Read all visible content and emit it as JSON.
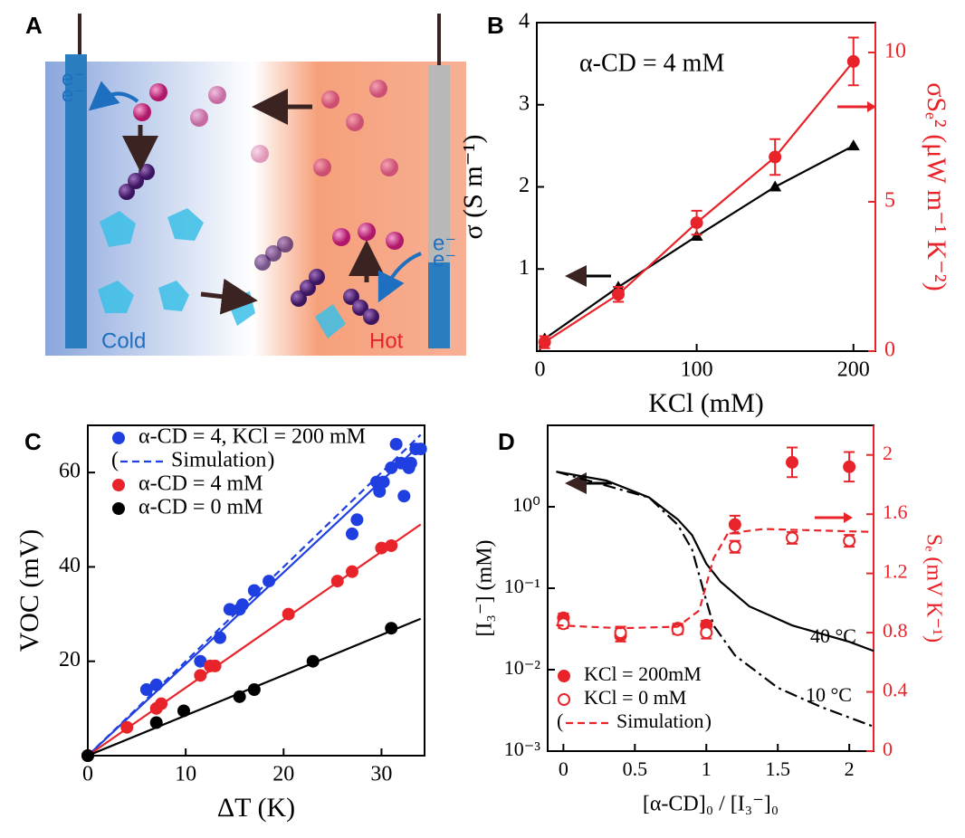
{
  "panel_a": {
    "label": "A",
    "cold": "Cold",
    "hot": "Hot",
    "electron_labels": [
      "e⁻",
      "e⁻",
      "e⁻",
      "e⁻"
    ]
  },
  "chart_data": [
    {
      "type": "line",
      "panel": "B",
      "xlabel": "KCl (mM)",
      "ylabel": "σ (S m⁻¹)",
      "y2label": "σSₑ² (μW m⁻¹ K⁻²)",
      "annotations": [
        "α-CD = 4 mM"
      ],
      "xlim": [
        -2,
        214
      ],
      "xticks": [
        0,
        100,
        200
      ],
      "ylim": [
        0,
        4
      ],
      "yticks": [
        1,
        2,
        3,
        4
      ],
      "y2lim": [
        0,
        11
      ],
      "y2ticks": [
        0,
        5,
        10
      ],
      "series": [
        {
          "color": "#000000",
          "marker": "triangle",
          "line_style": "solid",
          "x": [
            3,
            50,
            100,
            150,
            200
          ],
          "values": [
            0.15,
            0.78,
            1.4,
            2.0,
            2.5
          ]
        },
        {
          "color": "#e8242a",
          "marker": "circle",
          "line_style": "solid",
          "axis": "y2",
          "x": [
            3,
            50,
            100,
            150,
            200
          ],
          "values": [
            0.3,
            1.9,
            4.3,
            6.5,
            9.7
          ],
          "errors": [
            0.2,
            0.25,
            0.4,
            0.6,
            0.8
          ]
        }
      ]
    },
    {
      "type": "scatter",
      "panel": "C",
      "xlabel": "ΔT (K)",
      "ylabel": "VOC (mV)",
      "legend": "upper left",
      "xlim": [
        0,
        34.4
      ],
      "xticks": [
        0,
        10,
        20,
        30
      ],
      "ylim": [
        0,
        70
      ],
      "yticks": [
        20,
        40,
        60
      ],
      "series": [
        {
          "name": "α-CD = 4, KCl = 200 mM",
          "color": "#1f3fe0",
          "marker": "circle",
          "x": [
            0,
            6,
            7,
            11.5,
            13.5,
            14.5,
            15.5,
            15.8,
            17,
            18.5,
            27,
            27.5,
            29.5,
            29.8,
            30.2,
            31,
            31.5,
            32,
            32.3,
            32.8,
            33,
            33.5,
            34
          ],
          "values": [
            0,
            14,
            15,
            20,
            25,
            31,
            31,
            32,
            35,
            37,
            47,
            50,
            58,
            56,
            58,
            61,
            66,
            62,
            55,
            61,
            62,
            65,
            65
          ]
        },
        {
          "color": "#1f3fe0",
          "line_style": "solid",
          "x": [
            0,
            34
          ],
          "values": [
            0,
            66
          ]
        },
        {
          "name": "Simulation",
          "bracketed": true,
          "color": "#1f3fe0",
          "line_style": "dashed",
          "x": [
            0,
            34
          ],
          "values": [
            0,
            68
          ]
        },
        {
          "name": "α-CD = 4 mM",
          "color": "#e8242a",
          "marker": "circle",
          "x": [
            0,
            4,
            7,
            7.5,
            11.5,
            12.5,
            13,
            20.5,
            25.5,
            27,
            30,
            31
          ],
          "values": [
            0,
            6,
            10,
            11,
            17,
            19,
            19,
            30,
            37,
            39,
            44,
            44.5
          ]
        },
        {
          "color": "#e8242a",
          "line_style": "solid",
          "x": [
            0,
            34
          ],
          "values": [
            0,
            49
          ]
        },
        {
          "name": "α-CD = 0 mM",
          "color": "#000000",
          "marker": "circle",
          "x": [
            0,
            7,
            9.8,
            15.5,
            17,
            23,
            31
          ],
          "values": [
            0,
            7,
            9.5,
            12.5,
            14,
            20,
            27
          ]
        },
        {
          "color": "#000000",
          "line_style": "solid",
          "x": [
            0,
            34
          ],
          "values": [
            0,
            29
          ]
        }
      ]
    },
    {
      "type": "line",
      "panel": "D",
      "xlabel": "[α-CD]₀ / [I₃⁻]₀",
      "ylabel": "[I₃⁻] (mM)",
      "y2label": "Sₑ (mV K⁻¹)",
      "legend": "lower left",
      "annotations": [
        "40 °C",
        "10 °C"
      ],
      "ylog": true,
      "xlim": [
        -0.11,
        2.17
      ],
      "xticks": [
        0,
        0.5,
        1,
        1.5,
        2
      ],
      "ylim": [
        0.001,
        10
      ],
      "yticks": [
        {
          "value": 1,
          "label": "10⁰"
        },
        {
          "value": 0.1,
          "label": "10⁻¹"
        },
        {
          "value": 0.01,
          "label": "10⁻²"
        },
        {
          "value": 0.001,
          "label": "10⁻³"
        }
      ],
      "y2lim": [
        0,
        2.2
      ],
      "y2ticks": [
        0,
        0.4,
        0.8,
        1.2,
        1.6,
        2
      ],
      "series": [
        {
          "color": "#000000",
          "line_style": "solid",
          "x": [
            -0.05,
            0.3,
            0.6,
            0.8,
            0.9,
            1,
            1.1,
            1.3,
            1.6,
            2,
            2.17
          ],
          "values": [
            2.7,
            2.1,
            1.3,
            0.7,
            0.45,
            0.2,
            0.12,
            0.06,
            0.035,
            0.022,
            0.017
          ]
        },
        {
          "color": "#000000",
          "line_style": "dashdot",
          "x": [
            -0.05,
            0.6,
            0.8,
            0.9,
            1,
            1.05,
            1.2,
            1.5,
            1.8,
            2.17
          ],
          "values": [
            2.7,
            1.3,
            0.6,
            0.3,
            0.07,
            0.035,
            0.015,
            0.006,
            0.0035,
            0.002
          ]
        },
        {
          "name": "KCl = 200mM",
          "color": "#e8242a",
          "marker": "circle",
          "axis": "y2",
          "x": [
            0,
            0.4,
            0.8,
            1,
            1.2,
            1.6,
            2
          ],
          "values": [
            0.9,
            0.78,
            0.83,
            0.85,
            1.53,
            1.95,
            1.92
          ],
          "errors": [
            0.03,
            0.04,
            0.03,
            0.03,
            0.06,
            0.1,
            0.1
          ]
        },
        {
          "name": "KCl = 0 mM",
          "color": "#e8242a",
          "marker": "open-circle",
          "axis": "y2",
          "x": [
            0,
            0.4,
            0.8,
            1,
            1.2,
            1.6,
            2
          ],
          "values": [
            0.86,
            0.8,
            0.82,
            0.8,
            1.38,
            1.44,
            1.42
          ],
          "errors": [
            0.03,
            0.04,
            0.03,
            0.04,
            0.04,
            0.04,
            0.04
          ]
        },
        {
          "name": "Simulation",
          "bracketed": true,
          "color": "#e8242a",
          "line_style": "dashed",
          "axis": "y2",
          "x": [
            -0.05,
            0.4,
            0.8,
            0.95,
            1.05,
            1.15,
            1.4,
            2.17
          ],
          "values": [
            0.85,
            0.83,
            0.84,
            0.95,
            1.3,
            1.47,
            1.5,
            1.48
          ]
        }
      ]
    }
  ]
}
